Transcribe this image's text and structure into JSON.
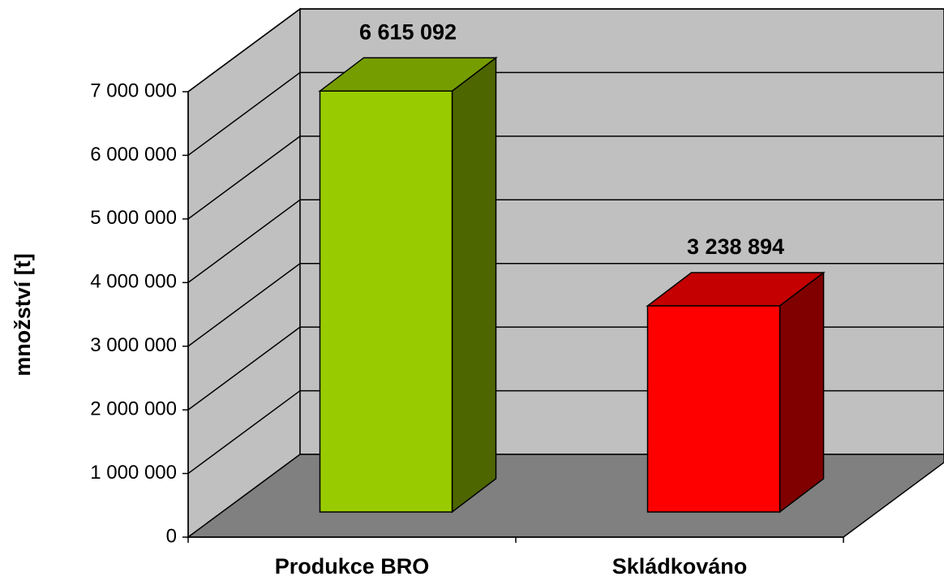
{
  "chart_data": {
    "type": "bar3d",
    "ylabel": "množství [t]",
    "categories": [
      "Produkce BRO",
      "Skládkováno"
    ],
    "values": [
      6615092,
      3238894
    ],
    "value_labels": [
      "6 615 092",
      "3 238 894"
    ],
    "colors": [
      "#99cc00",
      "#ff0000"
    ],
    "ylim": [
      0,
      7000000
    ],
    "yticks": [
      0,
      {
        "value": 1000000,
        "label": "1 000 000"
      },
      {
        "value": 2000000,
        "label": "2 000 000"
      },
      {
        "value": 3000000,
        "label": "3 000 000"
      },
      {
        "value": 4000000,
        "label": "4 000 000"
      },
      {
        "value": 5000000,
        "label": "5 000 000"
      },
      {
        "value": 6000000,
        "label": "6 000 000"
      },
      {
        "value": 7000000,
        "label": "7 000 000"
      }
    ],
    "grid": true
  }
}
